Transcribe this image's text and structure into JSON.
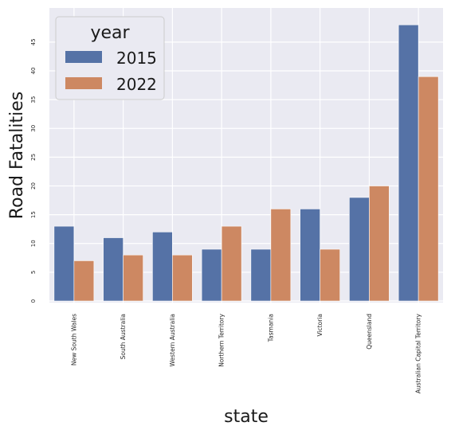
{
  "chart_data": {
    "type": "bar",
    "xlabel": "state",
    "ylabel": "Road Fatalities",
    "ylim": [
      0,
      50
    ],
    "yticks": [
      0,
      5,
      10,
      15,
      20,
      25,
      30,
      35,
      40,
      45
    ],
    "grid": true,
    "legend_placement": "top-left",
    "legend_title": "year",
    "categories": [
      "New South Wales",
      "South Australia",
      "Western Australia",
      "Northern Territory",
      "Tasmania",
      "Victoria",
      "Queensland",
      "Australian Capital Territory"
    ],
    "series": [
      {
        "name": "2015",
        "color": "#5572a6",
        "values": [
          13,
          11,
          12,
          9,
          9,
          16,
          18,
          48
        ]
      },
      {
        "name": "2022",
        "color": "#cd8862",
        "values": [
          7,
          8,
          8,
          13,
          16,
          9,
          20,
          39
        ]
      }
    ],
    "background_color": "#eaeaf2"
  }
}
